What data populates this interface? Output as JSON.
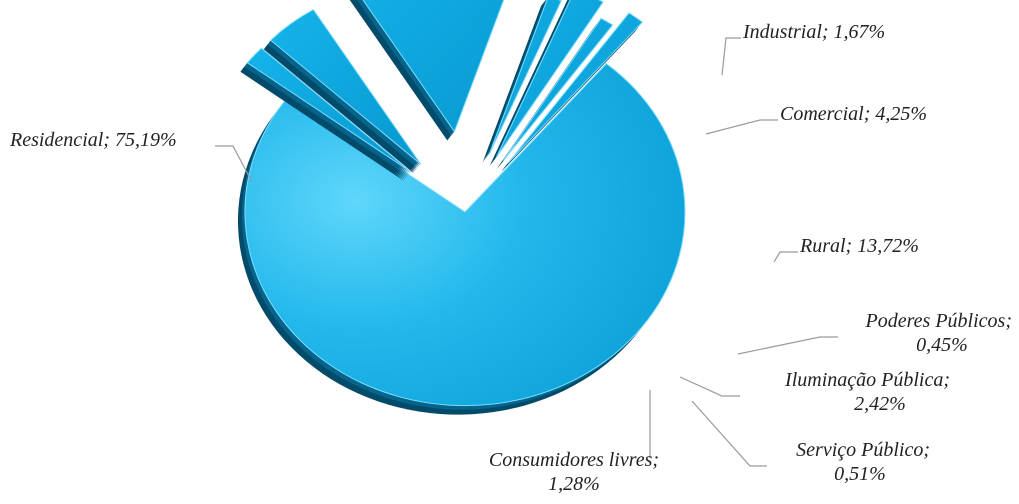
{
  "chart_data": {
    "type": "pie",
    "title": "",
    "legend": "none",
    "slices": [
      {
        "name": "Residencial",
        "value": 75.19,
        "label": "Residencial; 75,19%"
      },
      {
        "name": "Industrial",
        "value": 1.67,
        "label": "Industrial; 1,67%"
      },
      {
        "name": "Comercial",
        "value": 4.25,
        "label": "Comercial; 4,25%"
      },
      {
        "name": "Rural",
        "value": 13.72,
        "label": "Rural; 13,72%"
      },
      {
        "name": "Poderes Públicos",
        "value": 0.45,
        "label": "Poderes Públicos; 0,45%"
      },
      {
        "name": "Iluminação Pública",
        "value": 2.42,
        "label": "Iluminação Pública; 2,42%"
      },
      {
        "name": "Serviço Público",
        "value": 0.51,
        "label": "Serviço Público; 0,51%"
      },
      {
        "name": "Consumidores livres",
        "value": 1.28,
        "label": "Consumidores livres; 1,28%"
      }
    ],
    "colors": {
      "face": "#0aaae2",
      "face_highlight": "#52d0f7",
      "side": "#05658d",
      "side_dark": "#034b6a"
    }
  }
}
